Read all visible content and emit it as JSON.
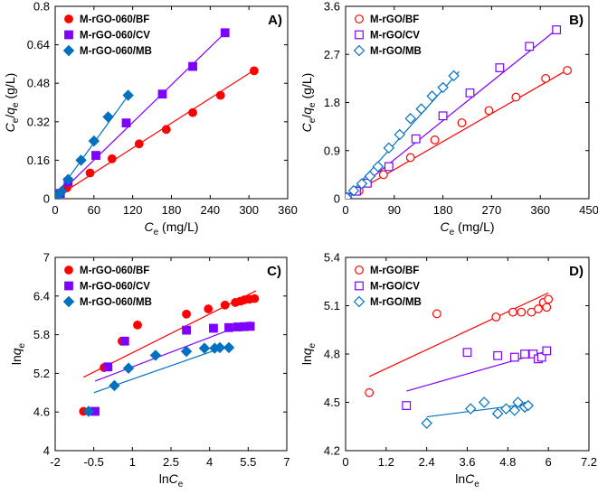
{
  "chart_data": [
    {
      "id": "A",
      "type": "scatter",
      "panel_label": "A)",
      "xlabel": "Ce (mg/L)",
      "ylabel": "Ce/qe (g/L)",
      "xlim": [
        0,
        360
      ],
      "ylim": [
        0,
        0.8
      ],
      "xticks": [
        "0",
        "60",
        "120",
        "180",
        "240",
        "300",
        "360"
      ],
      "yticks": [
        "0",
        "0.16",
        "0.32",
        "0.48",
        "0.64",
        "0.8"
      ],
      "legend_position": "top-left",
      "series": [
        {
          "name": "M-rGO-060/BF",
          "marker": "circle",
          "color": "#ff0000",
          "filled": true,
          "x": [
            1,
            5,
            18,
            54,
            88,
            130,
            172,
            213,
            256,
            308
          ],
          "y": [
            0.007,
            0.018,
            0.045,
            0.107,
            0.166,
            0.228,
            0.288,
            0.358,
            0.43,
            0.532
          ],
          "fit": [
            [
              0,
              0.004
            ],
            [
              310,
              0.538
            ]
          ]
        },
        {
          "name": "M-rGO-060/CV",
          "marker": "square",
          "color": "#7f00ff",
          "filled": true,
          "x": [
            2,
            8,
            20,
            63,
            110,
            166,
            213,
            263
          ],
          "y": [
            0.008,
            0.022,
            0.07,
            0.18,
            0.315,
            0.435,
            0.55,
            0.69
          ],
          "fit": [
            [
              0,
              0.004
            ],
            [
              263,
              0.69
            ]
          ]
        },
        {
          "name": "M-rGO-060/MB",
          "marker": "diamond",
          "color": "#0070c0",
          "filled": true,
          "x": [
            3,
            10,
            20,
            40,
            60,
            82,
            113
          ],
          "y": [
            0.01,
            0.03,
            0.08,
            0.16,
            0.24,
            0.34,
            0.43
          ],
          "fit": [
            [
              0,
              0.01
            ],
            [
              116,
              0.44
            ]
          ]
        }
      ]
    },
    {
      "id": "B",
      "type": "scatter",
      "panel_label": "B)",
      "xlabel": "Ce (mg/L)",
      "ylabel": "Ce/qe (g/L)",
      "xlim": [
        0,
        450
      ],
      "ylim": [
        0,
        3.6
      ],
      "xticks": [
        "0",
        "90",
        "180",
        "270",
        "360",
        "450"
      ],
      "yticks": [
        "0",
        "0.9",
        "1.8",
        "2.7",
        "3.6"
      ],
      "legend_position": "top-left",
      "series": [
        {
          "name": "M-rGO/BF",
          "marker": "circle",
          "color": "#ff0000",
          "filled": false,
          "x": [
            2,
            25,
            70,
            120,
            165,
            215,
            265,
            315,
            370,
            410
          ],
          "y": [
            0.02,
            0.15,
            0.45,
            0.77,
            1.1,
            1.42,
            1.65,
            1.9,
            2.25,
            2.4
          ],
          "fit": [
            [
              0,
              0.02
            ],
            [
              412,
              2.42
            ]
          ]
        },
        {
          "name": "M-rGO/CV",
          "marker": "square",
          "color": "#7f00ff",
          "filled": false,
          "x": [
            3,
            20,
            40,
            80,
            130,
            180,
            230,
            285,
            340,
            390
          ],
          "y": [
            0.03,
            0.14,
            0.29,
            0.6,
            1.12,
            1.55,
            1.98,
            2.45,
            2.85,
            3.16
          ],
          "fit": [
            [
              0,
              0.0
            ],
            [
              392,
              3.18
            ]
          ]
        },
        {
          "name": "M-rGO/MB",
          "marker": "diamond",
          "color": "#0070c0",
          "filled": false,
          "x": [
            2,
            15,
            30,
            45,
            60,
            80,
            100,
            120,
            140,
            160,
            180,
            200
          ],
          "y": [
            0.02,
            0.15,
            0.28,
            0.42,
            0.6,
            0.95,
            1.2,
            1.5,
            1.68,
            1.92,
            2.08,
            2.3
          ],
          "fit": [
            [
              0,
              0.0
            ],
            [
              210,
              2.38
            ]
          ]
        }
      ]
    },
    {
      "id": "C",
      "type": "scatter",
      "panel_label": "C)",
      "xlabel": "lnCe",
      "ylabel": "lnqe",
      "xlim": [
        -2,
        7
      ],
      "ylim": [
        4,
        7
      ],
      "xticks": [
        "-2",
        "-0.5",
        "1",
        "2.5",
        "4",
        "5.5",
        "7"
      ],
      "yticks": [
        "4",
        "4.6",
        "5.2",
        "5.8",
        "6.4",
        "7"
      ],
      "legend_position": "top-left",
      "series": [
        {
          "name": "M-rGO-060/BF",
          "marker": "circle",
          "color": "#ff0000",
          "filled": true,
          "x": [
            -0.9,
            -0.1,
            0.6,
            1.2,
            3.1,
            3.95,
            4.6,
            5.0,
            5.2,
            5.35,
            5.55,
            5.75
          ],
          "y": [
            4.61,
            5.29,
            5.7,
            5.95,
            6.12,
            6.2,
            6.26,
            6.3,
            6.32,
            6.34,
            6.35,
            6.36
          ],
          "fit": [
            [
              -0.9,
              5.14
            ],
            [
              5.8,
              6.48
            ]
          ]
        },
        {
          "name": "M-rGO-060/CV",
          "marker": "square",
          "color": "#7f00ff",
          "filled": true,
          "x": [
            -0.45,
            0.05,
            0.7,
            3.1,
            4.15,
            4.75,
            5.1,
            5.35,
            5.58
          ],
          "y": [
            4.61,
            5.3,
            5.7,
            5.87,
            5.9,
            5.91,
            5.92,
            5.925,
            5.93
          ],
          "fit": [
            [
              -0.45,
              5.08
            ],
            [
              5.6,
              6.0
            ]
          ]
        },
        {
          "name": "M-rGO-060/MB",
          "marker": "diamond",
          "color": "#0070c0",
          "filled": true,
          "x": [
            -0.7,
            0.3,
            0.85,
            1.9,
            3.1,
            3.8,
            4.2,
            4.4,
            4.75
          ],
          "y": [
            4.61,
            5.01,
            5.28,
            5.48,
            5.54,
            5.59,
            5.59,
            5.6,
            5.6
          ],
          "fit": [
            [
              -0.5,
              4.9
            ],
            [
              4.8,
              5.64
            ]
          ]
        }
      ]
    },
    {
      "id": "D",
      "type": "scatter",
      "panel_label": "D)",
      "xlabel": "lnCe",
      "ylabel": "lnqe",
      "xlim": [
        0,
        7.2
      ],
      "ylim": [
        4.2,
        5.4
      ],
      "xticks": [
        "0",
        "1.2",
        "2.4",
        "3.6",
        "4.8",
        "6",
        "7.2"
      ],
      "yticks": [
        "4.2",
        "4.5",
        "4.8",
        "5.1",
        "5.4"
      ],
      "legend_position": "top-left",
      "series": [
        {
          "name": "M-rGO/BF",
          "marker": "circle",
          "color": "#ff0000",
          "filled": false,
          "x": [
            0.7,
            2.7,
            4.45,
            4.95,
            5.2,
            5.5,
            5.7,
            5.85,
            5.95,
            6.0
          ],
          "y": [
            4.56,
            5.05,
            5.03,
            5.06,
            5.06,
            5.06,
            5.08,
            5.12,
            5.09,
            5.14
          ],
          "fit": [
            [
              0.7,
              4.66
            ],
            [
              6.0,
              5.18
            ]
          ]
        },
        {
          "name": "M-rGO/CV",
          "marker": "square",
          "color": "#7f00ff",
          "filled": false,
          "x": [
            1.8,
            3.6,
            4.5,
            5.0,
            5.3,
            5.55,
            5.7,
            5.8,
            5.95
          ],
          "y": [
            4.48,
            4.81,
            4.79,
            4.78,
            4.8,
            4.8,
            4.77,
            4.78,
            4.82
          ],
          "fit": [
            [
              1.8,
              4.57
            ],
            [
              6.0,
              4.82
            ]
          ]
        },
        {
          "name": "M-rGO/MB",
          "marker": "diamond",
          "color": "#0070c0",
          "filled": false,
          "x": [
            2.4,
            3.7,
            4.1,
            4.5,
            4.75,
            5.0,
            5.1,
            5.3,
            5.4
          ],
          "y": [
            4.37,
            4.46,
            4.5,
            4.43,
            4.46,
            4.45,
            4.5,
            4.47,
            4.48
          ],
          "fit": [
            [
              2.4,
              4.41
            ],
            [
              5.4,
              4.49
            ]
          ]
        }
      ]
    }
  ]
}
